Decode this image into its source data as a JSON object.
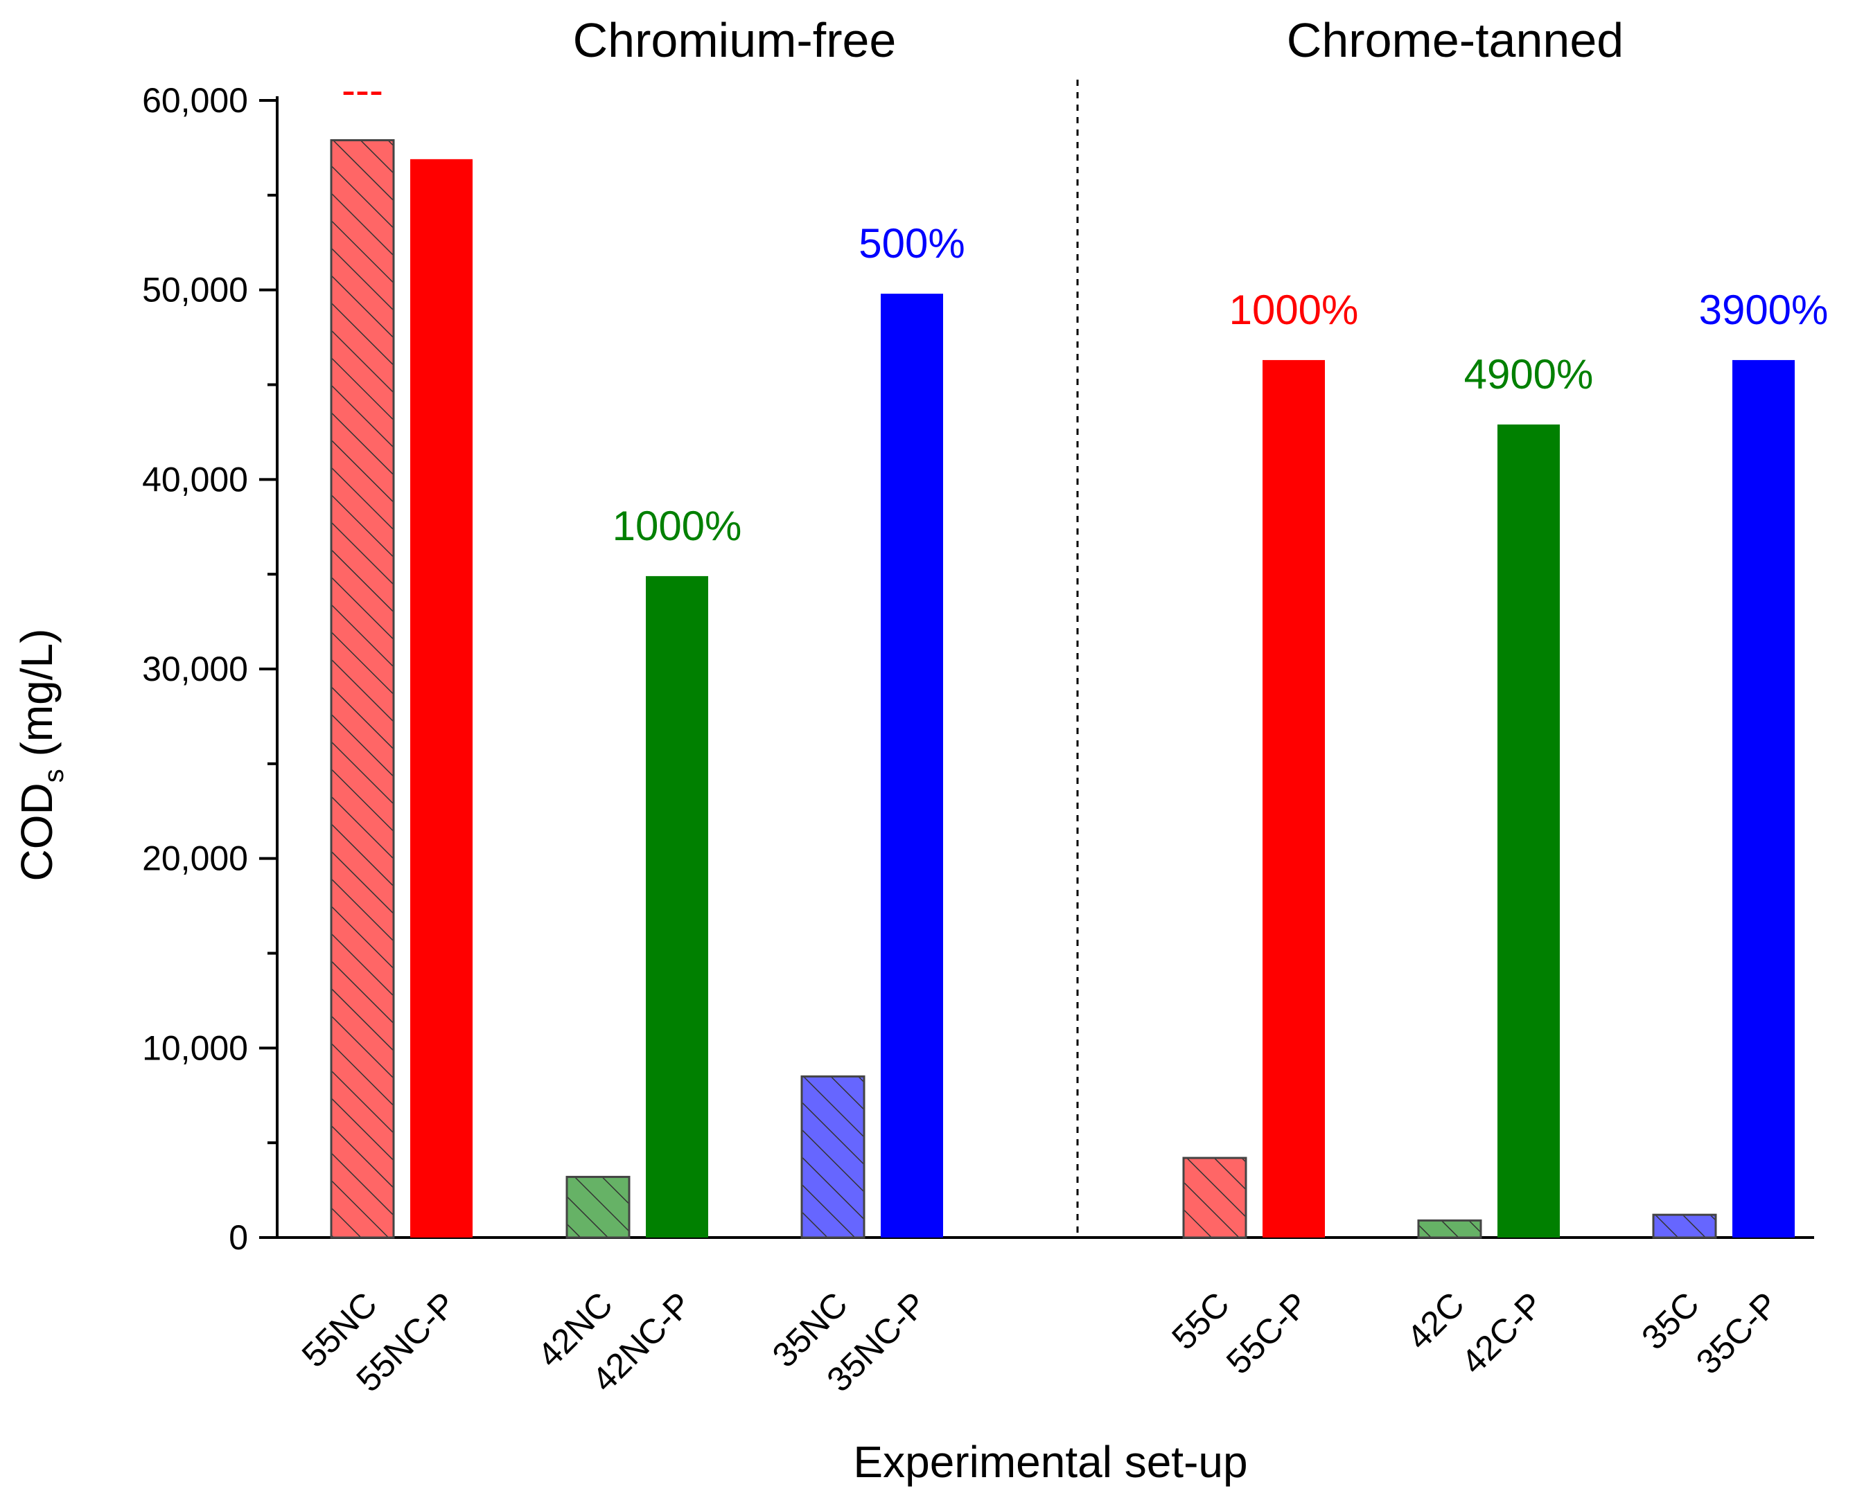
{
  "chart_data": {
    "type": "bar",
    "title": "",
    "xlabel": "Experimental set-up",
    "ylabel": {
      "main": "COD",
      "subscript": "s",
      "unit": "(mg/L)"
    },
    "ylim": [
      0,
      60000
    ],
    "y_ticks": [
      {
        "value": 0,
        "label": "0"
      },
      {
        "value": 10000,
        "label": "10,000"
      },
      {
        "value": 20000,
        "label": "20,000"
      },
      {
        "value": 30000,
        "label": "30,000"
      },
      {
        "value": 40000,
        "label": "40,000"
      },
      {
        "value": 50000,
        "label": "50,000"
      },
      {
        "value": 60000,
        "label": "60,000"
      }
    ],
    "grid": false,
    "groups": [
      {
        "title": "Chromium-free"
      },
      {
        "title": "Chrome-tanned"
      }
    ],
    "colors": {
      "red": "#ff0000",
      "green": "#008000",
      "blue": "#0000ff",
      "red_hatched": "#ff6666",
      "green_hatched": "#66b266",
      "blue_hatched": "#6666ff"
    },
    "bars": [
      {
        "label": "55NC",
        "value": 57900,
        "style": "hatched",
        "color": "red_hatched"
      },
      {
        "label": "55NC-P",
        "value": 56900,
        "style": "solid",
        "color": "red"
      },
      {
        "label": "42NC",
        "value": 3200,
        "style": "hatched",
        "color": "green_hatched"
      },
      {
        "label": "42NC-P",
        "value": 34900,
        "style": "solid",
        "color": "green"
      },
      {
        "label": "35NC",
        "value": 8500,
        "style": "hatched",
        "color": "blue_hatched"
      },
      {
        "label": "35NC-P",
        "value": 49800,
        "style": "solid",
        "color": "blue"
      },
      {
        "label": "55C",
        "value": 4200,
        "style": "hatched",
        "color": "red_hatched"
      },
      {
        "label": "55C-P",
        "value": 46300,
        "style": "solid",
        "color": "red"
      },
      {
        "label": "42C",
        "value": 900,
        "style": "hatched",
        "color": "green_hatched"
      },
      {
        "label": "42C-P",
        "value": 42900,
        "style": "solid",
        "color": "green"
      },
      {
        "label": "35C",
        "value": 1200,
        "style": "hatched",
        "color": "blue_hatched"
      },
      {
        "label": "35C-P",
        "value": 46300,
        "style": "solid",
        "color": "blue"
      }
    ],
    "annotations": [
      {
        "text": "---",
        "bar": "55NC",
        "color": "red"
      },
      {
        "text": "1000%",
        "bar": "42NC-P",
        "color": "green"
      },
      {
        "text": "500%",
        "bar": "35NC-P",
        "color": "blue"
      },
      {
        "text": "1000%",
        "bar": "55C-P",
        "color": "red"
      },
      {
        "text": "4900%",
        "bar": "42C-P",
        "color": "green"
      },
      {
        "text": "3900%",
        "bar": "35C-P",
        "color": "blue"
      }
    ]
  }
}
